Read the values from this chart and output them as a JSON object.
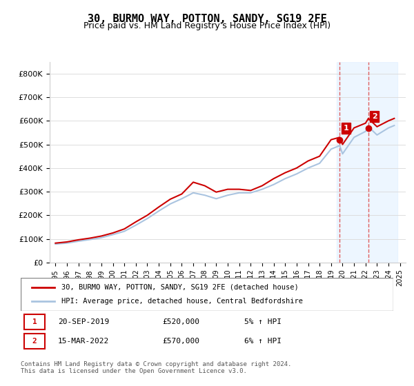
{
  "title": "30, BURMO WAY, POTTON, SANDY, SG19 2FE",
  "subtitle": "Price paid vs. HM Land Registry's House Price Index (HPI)",
  "ylabel": "",
  "ylim": [
    0,
    850000
  ],
  "yticks": [
    0,
    100000,
    200000,
    300000,
    400000,
    500000,
    600000,
    700000,
    800000
  ],
  "ytick_labels": [
    "£0",
    "£100K",
    "£200K",
    "£300K",
    "£400K",
    "£500K",
    "£600K",
    "£700K",
    "£800K"
  ],
  "hpi_color": "#aac4e0",
  "price_color": "#cc0000",
  "point1_color": "#cc0000",
  "point2_color": "#cc0000",
  "vline_color": "#e06060",
  "shade_color": "#ddeeff",
  "annotation_box_color": "#cc0000",
  "legend_line1": "30, BURMO WAY, POTTON, SANDY, SG19 2FE (detached house)",
  "legend_line2": "HPI: Average price, detached house, Central Bedfordshire",
  "table_row1": [
    "1",
    "20-SEP-2019",
    "£520,000",
    "5% ↑ HPI"
  ],
  "table_row2": [
    "2",
    "15-MAR-2022",
    "£570,000",
    "6% ↑ HPI"
  ],
  "footnote": "Contains HM Land Registry data © Crown copyright and database right 2024.\nThis data is licensed under the Open Government Licence v3.0.",
  "hpi_years": [
    1995,
    1996,
    1997,
    1998,
    1999,
    2000,
    2001,
    2002,
    2003,
    2004,
    2005,
    2006,
    2007,
    2008,
    2009,
    2010,
    2011,
    2012,
    2013,
    2014,
    2015,
    2016,
    2017,
    2018,
    2019,
    2019.75,
    2020,
    2021,
    2022,
    2022.25,
    2023,
    2024,
    2024.5
  ],
  "hpi_values": [
    78000,
    82000,
    90000,
    97000,
    105000,
    118000,
    132000,
    158000,
    186000,
    218000,
    248000,
    270000,
    295000,
    285000,
    270000,
    285000,
    295000,
    295000,
    310000,
    330000,
    355000,
    375000,
    400000,
    420000,
    480000,
    495000,
    460000,
    530000,
    555000,
    575000,
    540000,
    570000,
    580000
  ],
  "price_years": [
    1995,
    1996,
    1997,
    1998,
    1999,
    2000,
    2001,
    2002,
    2003,
    2004,
    2005,
    2006,
    2007,
    2008,
    2009,
    2010,
    2011,
    2012,
    2013,
    2014,
    2015,
    2016,
    2017,
    2018,
    2019,
    2019.75,
    2020,
    2021,
    2022,
    2022.25,
    2023,
    2024,
    2024.5
  ],
  "price_values": [
    82000,
    87000,
    96000,
    103000,
    112000,
    125000,
    142000,
    172000,
    200000,
    235000,
    268000,
    290000,
    340000,
    325000,
    298000,
    310000,
    310000,
    305000,
    325000,
    355000,
    380000,
    400000,
    430000,
    450000,
    520000,
    530000,
    500000,
    570000,
    590000,
    610000,
    575000,
    600000,
    610000
  ],
  "point1_x": 2019.75,
  "point1_y": 520000,
  "point2_x": 2022.25,
  "point2_y": 570000,
  "shade_x1": 2019.5,
  "shade_x2": 2024.8,
  "xmin": 1994.5,
  "xmax": 2025.5,
  "xtick_years": [
    1995,
    1996,
    1997,
    1998,
    1999,
    2000,
    2001,
    2002,
    2003,
    2004,
    2005,
    2006,
    2007,
    2008,
    2009,
    2010,
    2011,
    2012,
    2013,
    2014,
    2015,
    2016,
    2017,
    2018,
    2019,
    2020,
    2021,
    2022,
    2023,
    2024,
    2025
  ]
}
